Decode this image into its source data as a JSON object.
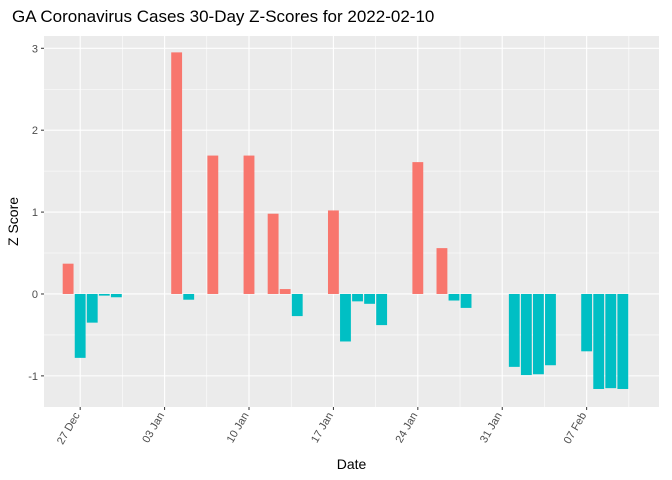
{
  "chart_data": {
    "type": "bar",
    "title": "GA Coronavirus Cases 30-Day Z-Scores for 2022-02-10",
    "xlabel": "Date",
    "ylabel": "Z Score",
    "x_axis_type": "date",
    "x_ticks": [
      {
        "date": "2021-12-27",
        "label": "27 Dec"
      },
      {
        "date": "2022-01-03",
        "label": "03 Jan"
      },
      {
        "date": "2022-01-10",
        "label": "10 Jan"
      },
      {
        "date": "2022-01-17",
        "label": "17 Jan"
      },
      {
        "date": "2022-01-24",
        "label": "24 Jan"
      },
      {
        "date": "2022-01-31",
        "label": "31 Jan"
      },
      {
        "date": "2022-02-07",
        "label": "07 Feb"
      }
    ],
    "y_ticks": [
      -1,
      0,
      1,
      2,
      3
    ],
    "ylim": [
      -1.38,
      3.15
    ],
    "xlim": [
      "2021-12-24",
      "2022-02-13"
    ],
    "grid": true,
    "legend": "none",
    "colors": {
      "positive": "#F8766D",
      "negative": "#00BFC4",
      "panel": "#EBEBEB",
      "grid": "#FFFFFF"
    },
    "points": [
      {
        "date": "2021-12-26",
        "value": 0.37
      },
      {
        "date": "2021-12-27",
        "value": -0.78
      },
      {
        "date": "2021-12-28",
        "value": -0.35
      },
      {
        "date": "2021-12-29",
        "value": -0.02
      },
      {
        "date": "2021-12-30",
        "value": -0.04
      },
      {
        "date": "2022-01-04",
        "value": 2.95
      },
      {
        "date": "2022-01-05",
        "value": -0.07
      },
      {
        "date": "2022-01-07",
        "value": 1.69
      },
      {
        "date": "2022-01-10",
        "value": 1.69
      },
      {
        "date": "2022-01-12",
        "value": 0.98
      },
      {
        "date": "2022-01-13",
        "value": 0.06
      },
      {
        "date": "2022-01-14",
        "value": -0.27
      },
      {
        "date": "2022-01-17",
        "value": 1.02
      },
      {
        "date": "2022-01-18",
        "value": -0.58
      },
      {
        "date": "2022-01-19",
        "value": -0.09
      },
      {
        "date": "2022-01-20",
        "value": -0.12
      },
      {
        "date": "2022-01-21",
        "value": -0.38
      },
      {
        "date": "2022-01-24",
        "value": 1.61
      },
      {
        "date": "2022-01-26",
        "value": 0.56
      },
      {
        "date": "2022-01-27",
        "value": -0.08
      },
      {
        "date": "2022-01-28",
        "value": -0.17
      },
      {
        "date": "2022-02-01",
        "value": -0.89
      },
      {
        "date": "2022-02-02",
        "value": -0.99
      },
      {
        "date": "2022-02-03",
        "value": -0.98
      },
      {
        "date": "2022-02-04",
        "value": -0.87
      },
      {
        "date": "2022-02-07",
        "value": -0.7
      },
      {
        "date": "2022-02-08",
        "value": -1.16
      },
      {
        "date": "2022-02-09",
        "value": -1.15
      },
      {
        "date": "2022-02-10",
        "value": -1.16
      }
    ]
  }
}
